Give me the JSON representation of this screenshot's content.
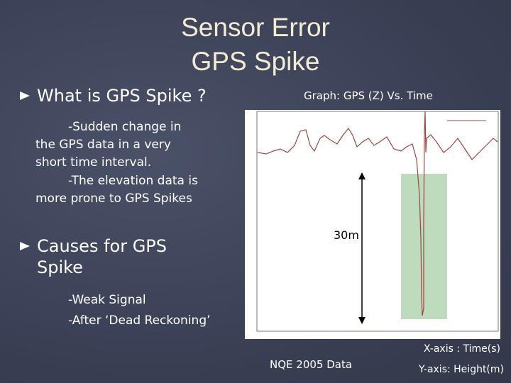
{
  "title": [
    "Sensor Error",
    "GPS Spike"
  ],
  "bullets": [
    {
      "heading": "What is GPS Spike ?",
      "body": [
        "-Sudden change in the GPS data in a very short time interval.",
        "-The elevation data is more prone to GPS Spikes"
      ]
    },
    {
      "heading": "Causes for GPS Spike",
      "body": [
        "-Weak Signal",
        "-After ‘Dead Reckoning’"
      ]
    }
  ],
  "graph": {
    "caption": "Graph: GPS (Z) Vs. Time",
    "annotation": "30m"
  },
  "footer": {
    "source": "NQE 2005 Data",
    "x_axis": "X-axis : Time(s)",
    "y_axis": "Y-axis: Height(m)"
  }
}
